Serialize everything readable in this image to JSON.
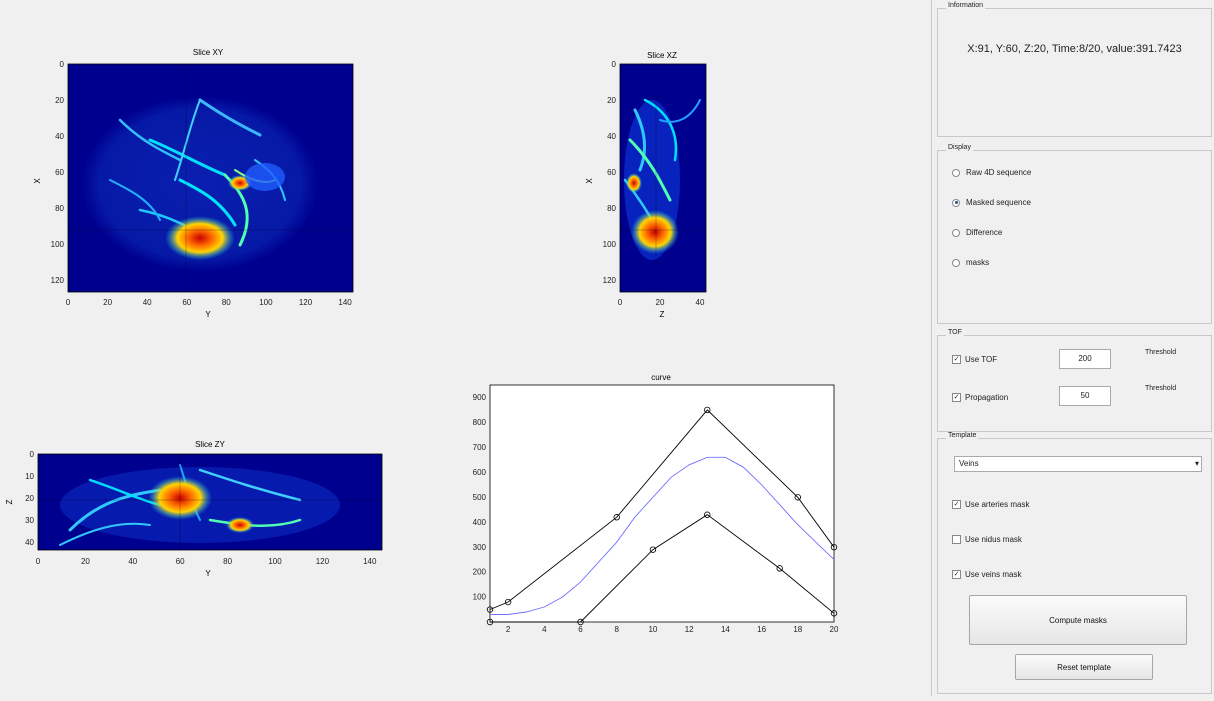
{
  "plots": {
    "xy": {
      "title": "Slice XY",
      "xlabel": "Y",
      "ylabel": "X",
      "xticks": [
        "0",
        "20",
        "40",
        "60",
        "80",
        "100",
        "120",
        "140"
      ],
      "yticks": [
        "0",
        "20",
        "40",
        "60",
        "80",
        "100",
        "120"
      ]
    },
    "xz": {
      "title": "Slice XZ",
      "xlabel": "Z",
      "ylabel": "X",
      "xticks": [
        "0",
        "20",
        "40"
      ],
      "yticks": [
        "0",
        "20",
        "40",
        "60",
        "80",
        "100",
        "120"
      ]
    },
    "zy": {
      "title": "Slice ZY",
      "xlabel": "Y",
      "ylabel": "Z",
      "xticks": [
        "0",
        "20",
        "40",
        "60",
        "80",
        "100",
        "120",
        "140"
      ],
      "yticks": [
        "0",
        "10",
        "20",
        "30",
        "40"
      ]
    },
    "curve": {
      "title": "curve",
      "xticks": [
        "2",
        "4",
        "6",
        "8",
        "10",
        "12",
        "14",
        "16",
        "18",
        "20"
      ],
      "yticks": [
        "100",
        "200",
        "300",
        "400",
        "500",
        "600",
        "700",
        "800",
        "900"
      ]
    }
  },
  "chart_data": {
    "type": "line",
    "title": "curve",
    "xlabel": "",
    "ylabel": "",
    "xlim": [
      1,
      20
    ],
    "ylim": [
      0,
      950
    ],
    "grid": false,
    "series": [
      {
        "color": "#000000",
        "marker": "circle",
        "x": [
          1,
          2,
          8,
          13,
          18,
          20
        ],
        "y": [
          50,
          80,
          420,
          850,
          500,
          300
        ]
      },
      {
        "color": "#7070ff",
        "marker": "none",
        "x": [
          1,
          2,
          3,
          4,
          5,
          6,
          7,
          8,
          9,
          10,
          11,
          12,
          13,
          14,
          15,
          16,
          17,
          18,
          19,
          20
        ],
        "y": [
          30,
          30,
          40,
          60,
          100,
          160,
          240,
          320,
          420,
          500,
          580,
          630,
          660,
          660,
          620,
          550,
          470,
          390,
          320,
          250
        ]
      },
      {
        "color": "#000000",
        "marker": "circle",
        "x": [
          1,
          6,
          10,
          13,
          17,
          20
        ],
        "y": [
          0,
          0,
          290,
          430,
          215,
          35
        ]
      }
    ]
  },
  "info": {
    "legend": "Information",
    "text": "X:91, Y:60, Z:20, Time:8/20, value:391.7423"
  },
  "display": {
    "legend": "Display",
    "options": [
      "Raw 4D sequence",
      "Masked sequence",
      "Difference",
      "masks"
    ],
    "selected": "Masked sequence"
  },
  "tof": {
    "legend": "TOF",
    "use_tof_label": "Use TOF",
    "use_tof_checked": true,
    "tof_threshold": "200",
    "propagation_label": "Propagation",
    "propagation_checked": true,
    "propagation_threshold": "50",
    "threshold_label": "Threshold"
  },
  "template": {
    "legend": "Template",
    "selected": "Veins",
    "check_arteries": "Use arteries mask",
    "check_nidus": "Use nidus mask",
    "check_veins": "Use veins mask",
    "compute_label": "Compute masks",
    "reset_label": "Reset template"
  },
  "colors": {
    "jet_bg": "#00008f",
    "curve_blue": "#7070ff",
    "panel_bg": "#f0f0f0"
  }
}
